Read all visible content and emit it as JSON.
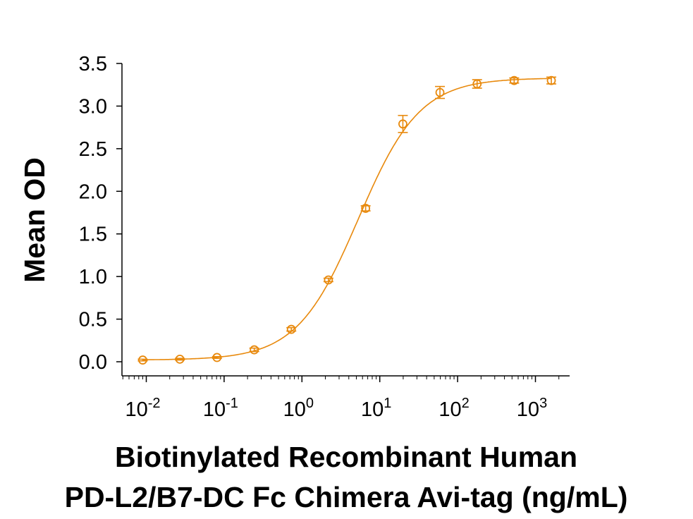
{
  "chart_data": {
    "type": "scatter",
    "title": "",
    "xlabel": [
      "Biotinylated Recombinant Human",
      "PD-L2/B7-DC Fc Chimera Avi-tag (ng/mL)"
    ],
    "ylabel": "Mean OD",
    "x_scale": "log",
    "xlim": [
      0.005,
      2700
    ],
    "ylim": [
      0,
      3.5
    ],
    "x_ticks": [
      {
        "base": "10",
        "exp": "-2",
        "value": 0.01
      },
      {
        "base": "10",
        "exp": "-1",
        "value": 0.1
      },
      {
        "base": "10",
        "exp": "0",
        "value": 1
      },
      {
        "base": "10",
        "exp": "1",
        "value": 10
      },
      {
        "base": "10",
        "exp": "2",
        "value": 100
      },
      {
        "base": "10",
        "exp": "3",
        "value": 1000
      }
    ],
    "y_ticks": [
      "0.0",
      "0.5",
      "1.0",
      "1.5",
      "2.0",
      "2.5",
      "3.0",
      "3.5"
    ],
    "grid": false,
    "color": "#E8890C",
    "marker": "open-circle",
    "fit_curve": "4-parameter logistic",
    "series": [
      {
        "x": [
          0.009,
          0.027,
          0.081,
          0.244,
          0.73,
          2.19,
          6.58,
          19.8,
          59.3,
          178,
          533,
          1600
        ],
        "y": [
          0.02,
          0.03,
          0.05,
          0.14,
          0.38,
          0.96,
          1.8,
          2.79,
          3.16,
          3.26,
          3.3,
          3.3
        ],
        "error": [
          0.01,
          0.01,
          0.01,
          0.02,
          0.02,
          0.02,
          0.03,
          0.1,
          0.07,
          0.05,
          0.03,
          0.04
        ]
      }
    ]
  }
}
